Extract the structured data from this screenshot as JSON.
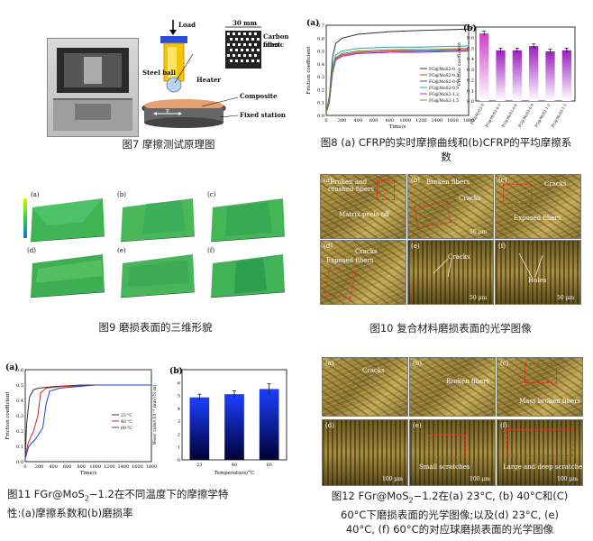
{
  "fig7": {
    "caption": "图7  摩擦测试原理图",
    "labels": {
      "load": "Load",
      "dim": "30 mm",
      "carbon_fiber": "Carbon fiber",
      "fabric": "fabric",
      "steel_ball": "Steel ball",
      "heater": "Heater",
      "composite": "Composite",
      "fixed_station": "Fixed station",
      "v": "v"
    }
  },
  "fig8": {
    "caption": "图8  (a) CFRP的实时摩擦曲线和(b)CFRP的平均摩擦系数",
    "panel_a": "(a)",
    "panel_b": "(b)",
    "colors": {
      "mauve": "#d040c8",
      "purple": "#9b20c0"
    },
    "chart_data": [
      {
        "type": "line",
        "title": "",
        "xlabel": "Time/s",
        "ylabel": "Friction coefficient",
        "xlim": [
          0,
          1800
        ],
        "ylim": [
          0,
          0.7
        ],
        "xticks": [
          "0",
          "200",
          "400",
          "600",
          "800",
          "1000",
          "1200",
          "1400",
          "1600",
          "1800"
        ],
        "yticks": [
          "0.0",
          "0.1",
          "0.2",
          "0.3",
          "0.4",
          "0.5",
          "0.6",
          "0.7"
        ],
        "legend": [
          "FG@MoS2-0",
          "FG@MoS2-0.3",
          "FG@MoS2-0.6",
          "FG@MoS2-0.9",
          "FG@MoS2-1.2",
          "FG@MoS2-1.5"
        ],
        "series": [
          {
            "name": "FG@MoS2-0",
            "color": "#333333",
            "x": [
              0,
              40,
              80,
              120,
              200,
              400,
              800,
              1200,
              1800
            ],
            "values": [
              0.02,
              0.15,
              0.45,
              0.56,
              0.6,
              0.63,
              0.65,
              0.66,
              0.67
            ]
          },
          {
            "name": "FG@MoS2-0.3",
            "color": "#d03030",
            "x": [
              0,
              40,
              80,
              120,
              200,
              400,
              800,
              1200,
              1800
            ],
            "values": [
              0.02,
              0.12,
              0.35,
              0.44,
              0.47,
              0.49,
              0.5,
              0.51,
              0.51
            ]
          },
          {
            "name": "FG@MoS2-0.6",
            "color": "#3050d0",
            "x": [
              0,
              40,
              80,
              120,
              200,
              400,
              800,
              1200,
              1800
            ],
            "values": [
              0.02,
              0.1,
              0.33,
              0.43,
              0.46,
              0.48,
              0.49,
              0.5,
              0.5
            ]
          },
          {
            "name": "FG@MoS2-0.9",
            "color": "#30a0a0",
            "x": [
              0,
              40,
              80,
              120,
              200,
              400,
              800,
              1200,
              1800
            ],
            "values": [
              0.02,
              0.13,
              0.38,
              0.47,
              0.5,
              0.52,
              0.53,
              0.53,
              0.54
            ]
          },
          {
            "name": "FG@MoS2-1.2",
            "color": "#b030b0",
            "x": [
              0,
              40,
              80,
              120,
              200,
              400,
              800,
              1200,
              1800
            ],
            "values": [
              0.02,
              0.11,
              0.34,
              0.43,
              0.46,
              0.48,
              0.49,
              0.49,
              0.5
            ]
          },
          {
            "name": "FG@MoS2-1.5",
            "color": "#709030",
            "x": [
              0,
              40,
              80,
              120,
              200,
              400,
              800,
              1200,
              1800
            ],
            "values": [
              0.02,
              0.12,
              0.36,
              0.45,
              0.48,
              0.5,
              0.51,
              0.51,
              0.52
            ]
          }
        ]
      },
      {
        "type": "bar",
        "title": "",
        "xlabel": "",
        "ylabel": "Friction coefficient",
        "ylim": [
          0,
          0.7
        ],
        "yticks": [
          "0.0",
          "0.1",
          "0.2",
          "0.3",
          "0.4",
          "0.5",
          "0.6",
          "0.7"
        ],
        "categories": [
          "FG@MoS2-0",
          "FG@MoS2-0.3",
          "FG@MoS2-0.6",
          "FG@MoS2-0.9",
          "FG@MoS2-1.2",
          "FG@MoS2-1.5"
        ],
        "values": [
          0.64,
          0.48,
          0.48,
          0.52,
          0.47,
          0.48
        ],
        "errors": [
          0.02,
          0.02,
          0.02,
          0.02,
          0.02,
          0.02
        ]
      }
    ]
  },
  "fig9": {
    "caption": "图9  磨损表面的三维形貌",
    "panels": [
      "(a)",
      "(b)",
      "(c)",
      "(d)",
      "(e)",
      "(f)"
    ]
  },
  "fig10": {
    "caption": "图10    复合材料磨损表面的光学图像",
    "panels": [
      "(a)",
      "(b)",
      "(c)",
      "(d)",
      "(e)",
      "(f)"
    ],
    "tags": {
      "a1": "Broken and",
      "a2": "crushed fibers",
      "a3": "Matrix peels off",
      "b1": "Broken fibers",
      "b2": "Cracks",
      "c1": "Cracks",
      "c2": "Exposed fibers",
      "d1": "Cracks",
      "d2": "Exposed fibers",
      "e1": "Cracks",
      "f1": "Holes"
    },
    "scale": "50 μm"
  },
  "fig11": {
    "caption_line1": "图11 FGr@MoS",
    "caption_sub": "2",
    "caption_line1b": "−1.2在不同温度下的摩擦学特",
    "caption_line2": "性:(a)摩擦系数和(b)磨损率",
    "panel_a": "(a)",
    "panel_b": "(b)",
    "chart_data": [
      {
        "type": "line",
        "title": "",
        "xlabel": "Time/s",
        "ylabel": "Friction coefficient",
        "xlim": [
          0,
          1800
        ],
        "ylim": [
          0,
          0.6
        ],
        "xticks": [
          "0",
          "200",
          "400",
          "600",
          "800",
          "1000",
          "1200",
          "1400",
          "1600",
          "1800"
        ],
        "yticks": [
          "0.0",
          "0.1",
          "0.2",
          "0.3",
          "0.4",
          "0.5",
          "0.6"
        ],
        "legend": [
          "23 °C",
          "40 °C",
          "60 °C"
        ],
        "series": [
          {
            "name": "23 °C",
            "color": "#333333",
            "x": [
              0,
              20,
              60,
              120,
              200,
              400,
              800,
              1200,
              1800
            ],
            "values": [
              0.02,
              0.25,
              0.42,
              0.47,
              0.48,
              0.49,
              0.5,
              0.5,
              0.5
            ]
          },
          {
            "name": "40 °C",
            "color": "#d02020",
            "x": [
              0,
              40,
              120,
              180,
              220,
              300,
              500,
              1000,
              1800
            ],
            "values": [
              0.02,
              0.12,
              0.2,
              0.3,
              0.45,
              0.48,
              0.49,
              0.5,
              0.5
            ]
          },
          {
            "name": "60 °C",
            "color": "#2040d0",
            "x": [
              0,
              50,
              150,
              250,
              300,
              350,
              500,
              1000,
              1800
            ],
            "values": [
              0.02,
              0.1,
              0.15,
              0.22,
              0.38,
              0.46,
              0.48,
              0.5,
              0.5
            ]
          }
        ]
      },
      {
        "type": "bar",
        "title": "",
        "xlabel": "Temperature/°C",
        "ylabel": "Wear rate/(10⁻⁴ mm³/N·m)",
        "ylim": [
          0,
          7
        ],
        "yticks": [
          "0",
          "1",
          "2",
          "3",
          "4",
          "5",
          "6",
          "7"
        ],
        "categories": [
          "23",
          "40",
          "60"
        ],
        "values": [
          4.85,
          5.1,
          5.5
        ],
        "errors": [
          0.25,
          0.25,
          0.4
        ]
      }
    ]
  },
  "fig12": {
    "caption_line1a": "图12  FGr@MoS",
    "caption_sub": "2",
    "caption_line1b": "−1.2在(a) 23°C, (b) 40°C和(C)",
    "caption_line2": "60°C下磨损表面的光学图像;以及(d) 23°C, (e)",
    "caption_line3": "40°C, (f) 60°C的对应球磨损表面的光学图像",
    "panels": [
      "(a)",
      "(b)",
      "(c)",
      "(d)",
      "(e)",
      "(f)"
    ],
    "tags": {
      "a1": "Cracks",
      "b1": "Broken fibers",
      "c1": "Mass broken fibers",
      "e1": "Small scratches",
      "f1": "Large and deep scratches"
    },
    "scale": "100 μm"
  }
}
